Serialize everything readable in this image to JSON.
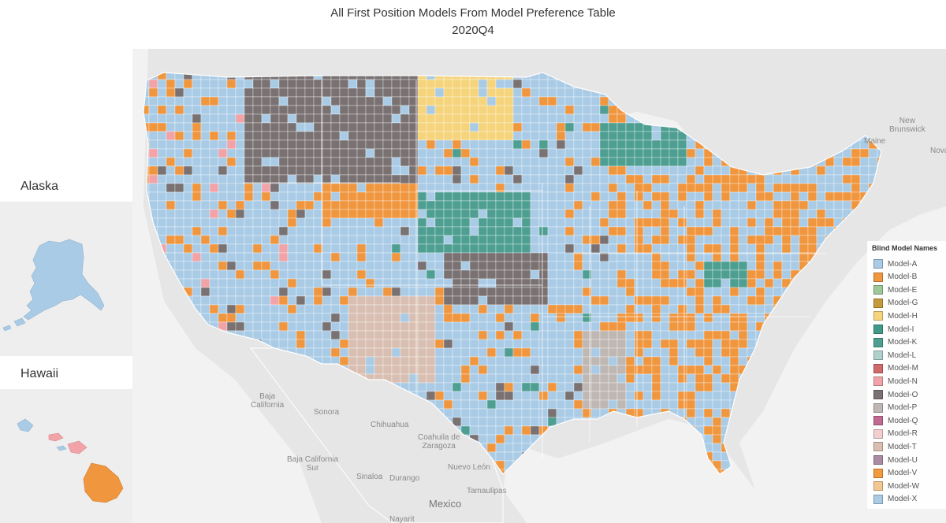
{
  "title": {
    "line1": "All First Position Models From Model Preference Table",
    "line2": "2020Q4"
  },
  "insets": {
    "alaska": {
      "label": "Alaska"
    },
    "hawaii": {
      "label": "Hawaii"
    }
  },
  "map_labels": {
    "new_brunswick": "New\nBrunswick",
    "maine": "Maine",
    "nova": "Nova",
    "baja_california": "Baja\nCalifornia",
    "sonora": "Sonora",
    "chihuahua": "Chihuahua",
    "coahuila": "Coahuila de\nZaragoza",
    "baja_california_sur": "Baja California\nSur",
    "sinaloa": "Sinaloa",
    "durango": "Durango",
    "nuevo_leon": "Nuevo León",
    "tamaulipas": "Tamaulipas",
    "mexico": "Mexico",
    "nayarit": "Nayarit"
  },
  "legend": {
    "title": "Blind Model Names",
    "items": [
      {
        "label": "Model-A",
        "color": "#a9cbe6"
      },
      {
        "label": "Model-B",
        "color": "#f0963e"
      },
      {
        "label": "Model-E",
        "color": "#9ec89a"
      },
      {
        "label": "Model-G",
        "color": "#c49a3c"
      },
      {
        "label": "Model-H",
        "color": "#f5d47c"
      },
      {
        "label": "Model-I",
        "color": "#3f9a8a"
      },
      {
        "label": "Model-K",
        "color": "#4e9f91"
      },
      {
        "label": "Model-L",
        "color": "#b0d0cc"
      },
      {
        "label": "Model-M",
        "color": "#d06a6a"
      },
      {
        "label": "Model-N",
        "color": "#f1a3a8"
      },
      {
        "label": "Model-O",
        "color": "#7a7272"
      },
      {
        "label": "Model-P",
        "color": "#bfb7b3"
      },
      {
        "label": "Model-Q",
        "color": "#c06a92"
      },
      {
        "label": "Model-R",
        "color": "#f2cfcf"
      },
      {
        "label": "Model-T",
        "color": "#d9bfb2"
      },
      {
        "label": "Model-U",
        "color": "#a98ca4"
      },
      {
        "label": "Model-V",
        "color": "#f29a3e"
      },
      {
        "label": "Model-W",
        "color": "#f3c78f"
      },
      {
        "label": "Model-X",
        "color": "#a9cbe6"
      }
    ]
  },
  "colors": {
    "land_background": "#e6e6e6",
    "water": "#f4f4f4",
    "base_blue": "#a9cbe6",
    "orange": "#f0963e",
    "gray": "#7a7272",
    "teal": "#4e9f91",
    "yellow": "#f5d47c",
    "pink": "#f1a3a8",
    "tan": "#d9bfb2",
    "lightgray": "#bfb7b3"
  }
}
